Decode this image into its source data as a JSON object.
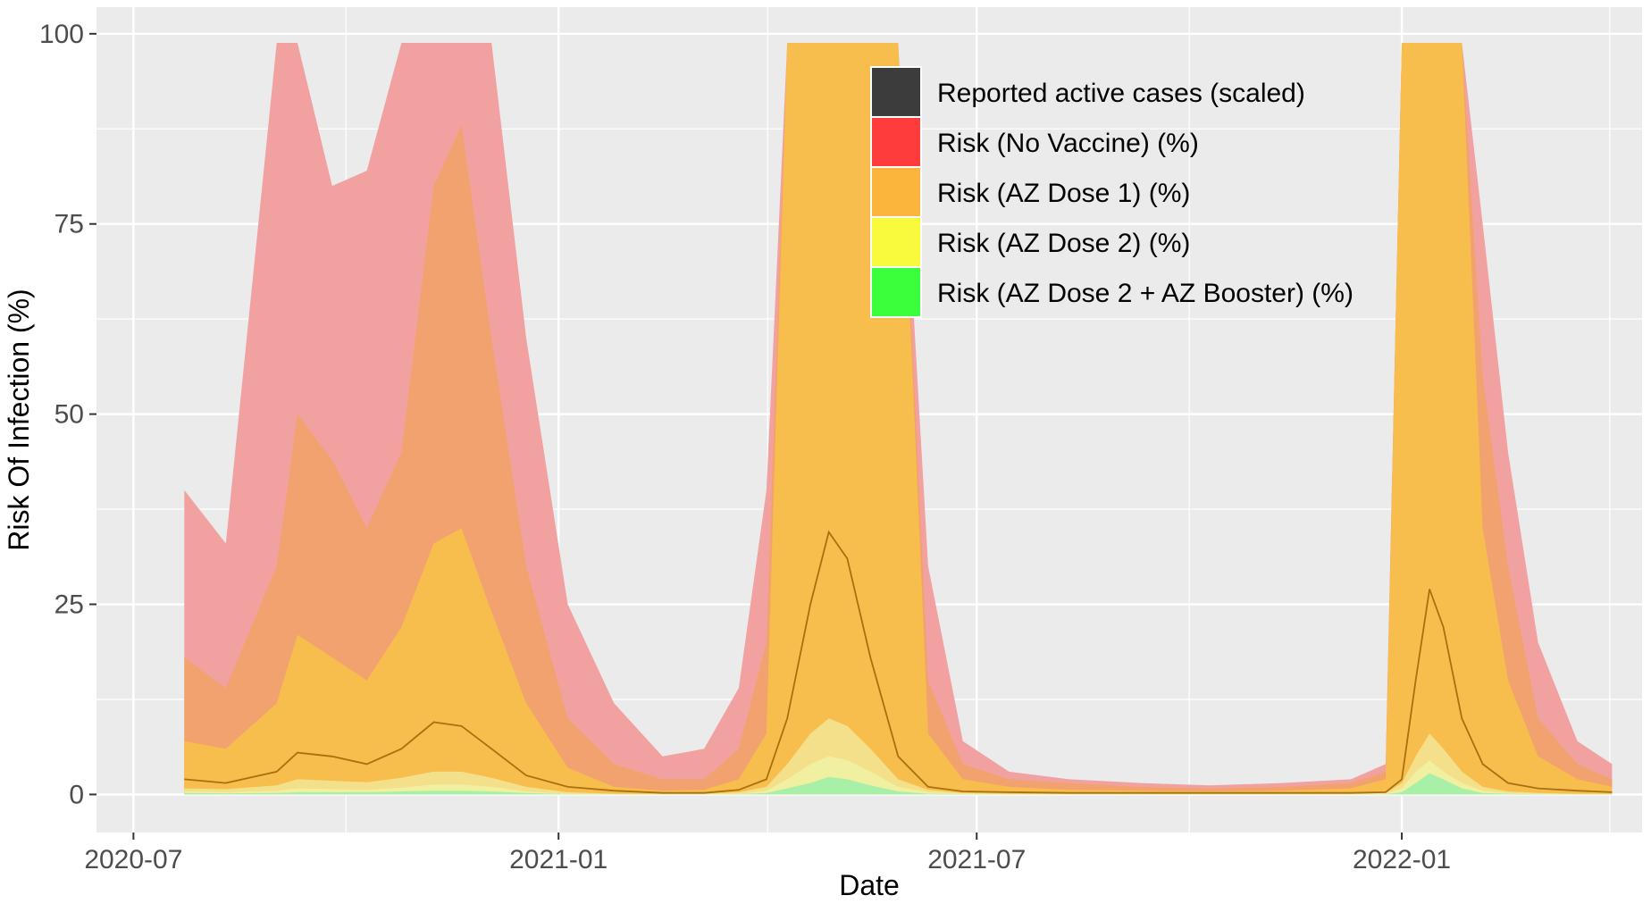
{
  "chart_data": {
    "type": "area",
    "xlabel": "Date",
    "ylabel": "Risk Of Infection (%)",
    "xlim": [
      "2020-06-15",
      "2022-04-15"
    ],
    "ylim": [
      -5,
      103.5
    ],
    "y_clip_max": 98.8,
    "x_ticks": [
      "2020-07-01",
      "2021-01-01",
      "2021-07-01",
      "2022-01-01"
    ],
    "x_tick_labels": [
      "2020-07",
      "2021-01",
      "2021-07",
      "2022-01"
    ],
    "y_ticks": [
      0,
      25,
      50,
      75,
      100
    ],
    "y_tick_labels": [
      "0",
      "25",
      "50",
      "75",
      "100"
    ],
    "grid": true,
    "legend_position": "inside-top-center",
    "x": [
      "2020-07-23",
      "2020-08-10",
      "2020-09-01",
      "2020-09-10",
      "2020-09-25",
      "2020-10-10",
      "2020-10-25",
      "2020-11-08",
      "2020-11-20",
      "2020-12-03",
      "2020-12-18",
      "2021-01-05",
      "2021-01-25",
      "2021-02-15",
      "2021-03-05",
      "2021-03-20",
      "2021-04-01",
      "2021-04-10",
      "2021-04-20",
      "2021-04-28",
      "2021-05-06",
      "2021-05-16",
      "2021-05-28",
      "2021-06-10",
      "2021-06-25",
      "2021-07-15",
      "2021-08-10",
      "2021-09-10",
      "2021-10-10",
      "2021-11-10",
      "2021-12-10",
      "2021-12-25",
      "2022-01-01",
      "2022-01-07",
      "2022-01-13",
      "2022-01-19",
      "2022-01-27",
      "2022-02-05",
      "2022-02-16",
      "2022-03-01",
      "2022-03-18",
      "2022-04-02"
    ],
    "series": [
      {
        "name": "Risk (No Vaccine) (%)",
        "color": "#F2A1A1",
        "values": [
          40,
          33,
          99,
          100,
          80,
          82,
          100,
          100,
          100,
          100,
          60,
          25,
          12,
          5,
          6,
          14,
          40,
          100,
          100,
          100,
          100,
          100,
          100,
          30,
          7,
          3,
          2,
          1.5,
          1.2,
          1.5,
          2,
          4,
          100,
          100,
          100,
          100,
          100,
          75,
          45,
          20,
          7,
          4
        ]
      },
      {
        "name": "Risk (AZ Dose 1) (%)",
        "color": "#F2A26E",
        "values": [
          18,
          14,
          30,
          50,
          44,
          35,
          45,
          80,
          88,
          60,
          30,
          10,
          4,
          2,
          2,
          6,
          20,
          100,
          100,
          100,
          100,
          100,
          100,
          15,
          4,
          2,
          1.5,
          1,
          0.8,
          1,
          1.5,
          3,
          100,
          100,
          100,
          100,
          100,
          55,
          30,
          10,
          4,
          2
        ]
      },
      {
        "name": "Risk (AZ Dose 1) (%)",
        "color": "#F7BE4E",
        "values": [
          7,
          6,
          12,
          21,
          18,
          15,
          22,
          33,
          35,
          24,
          12,
          3.5,
          1,
          0.5,
          0.6,
          2,
          8,
          100,
          100,
          100,
          100,
          100,
          100,
          8,
          2,
          1,
          0.6,
          0.5,
          0.4,
          0.5,
          0.8,
          2,
          100,
          100,
          100,
          100,
          100,
          35,
          15,
          5,
          2,
          1
        ]
      },
      {
        "name": "Risk (AZ Dose 2) (%)",
        "color": "#F4E08A",
        "values": [
          0.8,
          0.7,
          1.2,
          2,
          1.8,
          1.6,
          2.2,
          3,
          3,
          2.2,
          1,
          0.3,
          0.1,
          0.1,
          0.1,
          0.3,
          1,
          4,
          8,
          10,
          9,
          6,
          2,
          0.6,
          0.2,
          0.1,
          0.1,
          0.1,
          0.1,
          0.1,
          0.1,
          0.2,
          1.5,
          5,
          8,
          6,
          3,
          1,
          0.4,
          0.2,
          0.1,
          0.1
        ]
      },
      {
        "name": "Risk (AZ Dose 2) (%)",
        "color": "#F1EFA0",
        "values": [
          0.4,
          0.3,
          0.5,
          0.8,
          0.7,
          0.6,
          0.9,
          1.3,
          1.3,
          1,
          0.4,
          0.1,
          0.05,
          0.05,
          0.05,
          0.1,
          0.5,
          2,
          4,
          5,
          4.5,
          3,
          1,
          0.3,
          0.1,
          0.05,
          0.05,
          0.05,
          0.05,
          0.05,
          0.05,
          0.1,
          0.8,
          3,
          4.5,
          3,
          1.5,
          0.5,
          0.2,
          0.1,
          0.05,
          0.05
        ]
      },
      {
        "name": "Risk (AZ Dose 2 + AZ Booster) (%)",
        "color": "#A8F0A8",
        "values": [
          0.2,
          0.15,
          0.2,
          0.3,
          0.3,
          0.3,
          0.4,
          0.5,
          0.5,
          0.4,
          0.2,
          0.05,
          0.02,
          0.02,
          0.02,
          0.05,
          0.2,
          0.8,
          1.5,
          2.3,
          2,
          1.2,
          0.4,
          0.1,
          0.05,
          0.02,
          0.02,
          0.02,
          0.02,
          0.02,
          0.02,
          0.05,
          0.3,
          1.5,
          2.8,
          2,
          0.8,
          0.2,
          0.1,
          0.05,
          0.02,
          0.02
        ]
      },
      {
        "name": "Reported active cases (scaled)",
        "color": "#A8700E",
        "kind": "line",
        "values": [
          2,
          1.5,
          3,
          5.5,
          5,
          4,
          6,
          9.5,
          9,
          6,
          2.5,
          1,
          0.5,
          0.2,
          0.2,
          0.6,
          2,
          10,
          25,
          34.5,
          31,
          18,
          5,
          1,
          0.4,
          0.3,
          0.2,
          0.2,
          0.2,
          0.2,
          0.2,
          0.3,
          2,
          15,
          27,
          22,
          10,
          4,
          1.5,
          0.8,
          0.5,
          0.3
        ]
      }
    ],
    "legend": [
      {
        "label": "Reported active cases (scaled)",
        "color": "#3C3C3C"
      },
      {
        "label": "Risk (No Vaccine) (%)",
        "color": "#FF3C3C"
      },
      {
        "label": "Risk (AZ Dose 1) (%)",
        "color": "#FBB43C"
      },
      {
        "label": "Risk (AZ Dose 2) (%)",
        "color": "#FAFA3C"
      },
      {
        "label": "Risk (AZ Dose 2 + AZ Booster) (%)",
        "color": "#3CFF3C"
      }
    ]
  }
}
